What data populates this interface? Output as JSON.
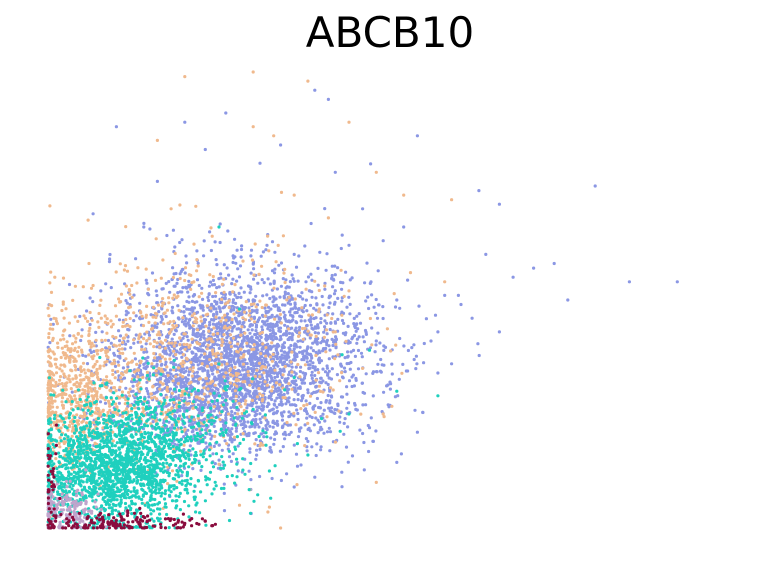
{
  "chart_data": {
    "type": "scatter",
    "title": "ABCB10",
    "xlabel": "",
    "ylabel": "",
    "axes_visible": false,
    "grid": false,
    "xlim": [
      0,
      10
    ],
    "ylim": [
      0,
      10
    ],
    "series": [
      {
        "color": "#8b97e4",
        "clusters": [
          {
            "cx": 2.9,
            "cy": 3.7,
            "sx": 0.95,
            "sy": 1.0,
            "n": 2600
          },
          {
            "cx": 2.2,
            "cy": 3.0,
            "sx": 0.7,
            "sy": 0.7,
            "n": 600
          }
        ],
        "points": [
          [
            9.2,
            5.4
          ],
          [
            8.5,
            5.4
          ],
          [
            8.0,
            7.5
          ],
          [
            7.4,
            5.8
          ],
          [
            7.6,
            5.0
          ],
          [
            7.1,
            5.7
          ],
          [
            6.6,
            7.1
          ],
          [
            6.8,
            5.5
          ],
          [
            6.4,
            6.0
          ],
          [
            6.3,
            7.4
          ],
          [
            6.6,
            4.3
          ],
          [
            6.0,
            5.1
          ],
          [
            5.8,
            5.1
          ],
          [
            5.7,
            4.3
          ],
          [
            5.9,
            3.6
          ],
          [
            5.4,
            8.6
          ],
          [
            4.1,
            9.4
          ],
          [
            3.9,
            9.6
          ],
          [
            2.0,
            8.9
          ],
          [
            1.0,
            8.8
          ],
          [
            2.3,
            8.3
          ],
          [
            3.6,
            6.0
          ],
          [
            4.8,
            4.1
          ],
          [
            5.2,
            6.6
          ],
          [
            5.6,
            4.1
          ],
          [
            6.2,
            4.6
          ],
          [
            4.9,
            6.3
          ],
          [
            5.1,
            5.0
          ],
          [
            4.6,
            7.0
          ],
          [
            4.4,
            6.2
          ],
          [
            5.0,
            3.2
          ],
          [
            5.4,
            2.1
          ],
          [
            4.5,
            2.6
          ],
          [
            3.8,
            1.9
          ],
          [
            4.2,
            7.8
          ],
          [
            3.4,
            8.4
          ],
          [
            2.6,
            9.1
          ],
          [
            3.1,
            8.0
          ],
          [
            1.6,
            7.6
          ],
          [
            1.4,
            6.6
          ],
          [
            0.9,
            5.9
          ],
          [
            1.2,
            4.9
          ],
          [
            5.7,
            3.4
          ],
          [
            4.7,
            2.2
          ],
          [
            3.6,
            0.9
          ]
        ]
      },
      {
        "color": "#f0b98d",
        "clusters": [
          {
            "cx": 0.4,
            "cy": 2.8,
            "sx": 0.35,
            "sy": 0.85,
            "n": 550
          },
          {
            "cx": 1.6,
            "cy": 3.5,
            "sx": 0.9,
            "sy": 1.0,
            "n": 500
          },
          {
            "cx": 2.6,
            "cy": 4.1,
            "sx": 1.0,
            "sy": 1.2,
            "n": 300
          }
        ],
        "points": [
          [
            1.9,
            10.2
          ],
          [
            2.0,
            9.9
          ],
          [
            3.1,
            10.2
          ],
          [
            3.0,
            10.0
          ],
          [
            3.8,
            9.8
          ],
          [
            4.4,
            8.9
          ],
          [
            5.2,
            7.3
          ],
          [
            5.8,
            5.4
          ],
          [
            5.9,
            7.2
          ],
          [
            4.8,
            7.8
          ],
          [
            3.0,
            8.8
          ],
          [
            3.3,
            8.6
          ],
          [
            1.6,
            8.5
          ],
          [
            0.1,
            5.5
          ],
          [
            0.4,
            5.3
          ],
          [
            0.6,
            5.8
          ],
          [
            4.4,
            5.2
          ],
          [
            4.6,
            3.5
          ],
          [
            4.2,
            4.3
          ],
          [
            4.8,
            1.0
          ],
          [
            3.1,
            1.8
          ],
          [
            2.8,
            0.5
          ],
          [
            3.4,
            0.0
          ],
          [
            2.5,
            1.4
          ],
          [
            1.8,
            7.0
          ],
          [
            2.4,
            6.4
          ],
          [
            4.1,
            6.8
          ],
          [
            3.6,
            7.3
          ],
          [
            5.3,
            5.6
          ],
          [
            4.9,
            2.5
          ]
        ]
      },
      {
        "color": "#1fd0be",
        "clusters": [
          {
            "cx": 0.9,
            "cy": 1.2,
            "sx": 0.55,
            "sy": 0.6,
            "n": 1400
          },
          {
            "cx": 1.6,
            "cy": 1.9,
            "sx": 0.75,
            "sy": 0.65,
            "n": 600
          }
        ],
        "points": [
          [
            5.7,
            2.9
          ],
          [
            5.1,
            3.0
          ],
          [
            4.3,
            3.8
          ],
          [
            4.0,
            2.4
          ],
          [
            2.8,
            4.8
          ],
          [
            2.5,
            3.6
          ],
          [
            4.4,
            2.5
          ],
          [
            3.8,
            1.6
          ],
          [
            2.6,
            2.8
          ],
          [
            3.2,
            2.0
          ],
          [
            2.5,
            6.6
          ],
          [
            3.6,
            3.3
          ],
          [
            4.7,
            3.9
          ],
          [
            3.0,
            2.6
          ]
        ]
      },
      {
        "color": "#c0a4cc",
        "clusters": [
          {
            "cx": 0.25,
            "cy": 0.35,
            "sx": 0.25,
            "sy": 0.28,
            "n": 180
          }
        ],
        "points": []
      },
      {
        "color": "#8a0c3e",
        "clusters": [
          {
            "cx": 1.1,
            "cy": 0.12,
            "sx": 0.6,
            "sy": 0.12,
            "n": 160
          },
          {
            "cx": 0.05,
            "cy": 0.8,
            "sx": 0.05,
            "sy": 0.6,
            "n": 40
          }
        ],
        "points": [
          [
            2.1,
            0.05
          ],
          [
            2.3,
            0.15
          ],
          [
            2.0,
            0.1
          ],
          [
            1.8,
            0.2
          ]
        ]
      }
    ]
  }
}
